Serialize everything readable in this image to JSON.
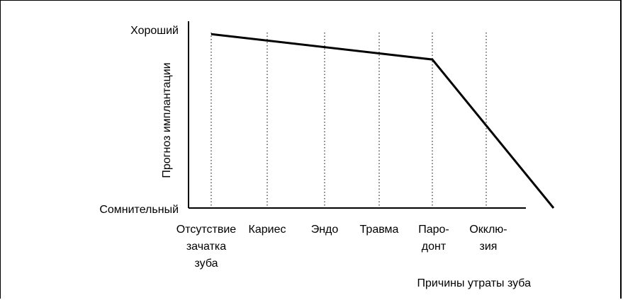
{
  "chart_data": {
    "type": "line",
    "ylabel": "Прогноз имплантации",
    "xlabel": "Причины утраты зуба",
    "y_ticks": [
      "Хороший",
      "Сомнительный"
    ],
    "categories": [
      [
        "Отсутствие",
        "зачатка",
        "зуба"
      ],
      [
        "Кариес"
      ],
      [
        "Эндо"
      ],
      [
        "Травма"
      ],
      [
        "Паро-",
        "донт"
      ],
      [
        "Окклю-",
        "зия"
      ]
    ],
    "ylim": [
      0,
      100
    ],
    "series": [
      {
        "x": [
          0,
          4,
          6.25
        ],
        "values": [
          96,
          82,
          0
        ]
      }
    ],
    "vertical_guides": "dotted"
  }
}
